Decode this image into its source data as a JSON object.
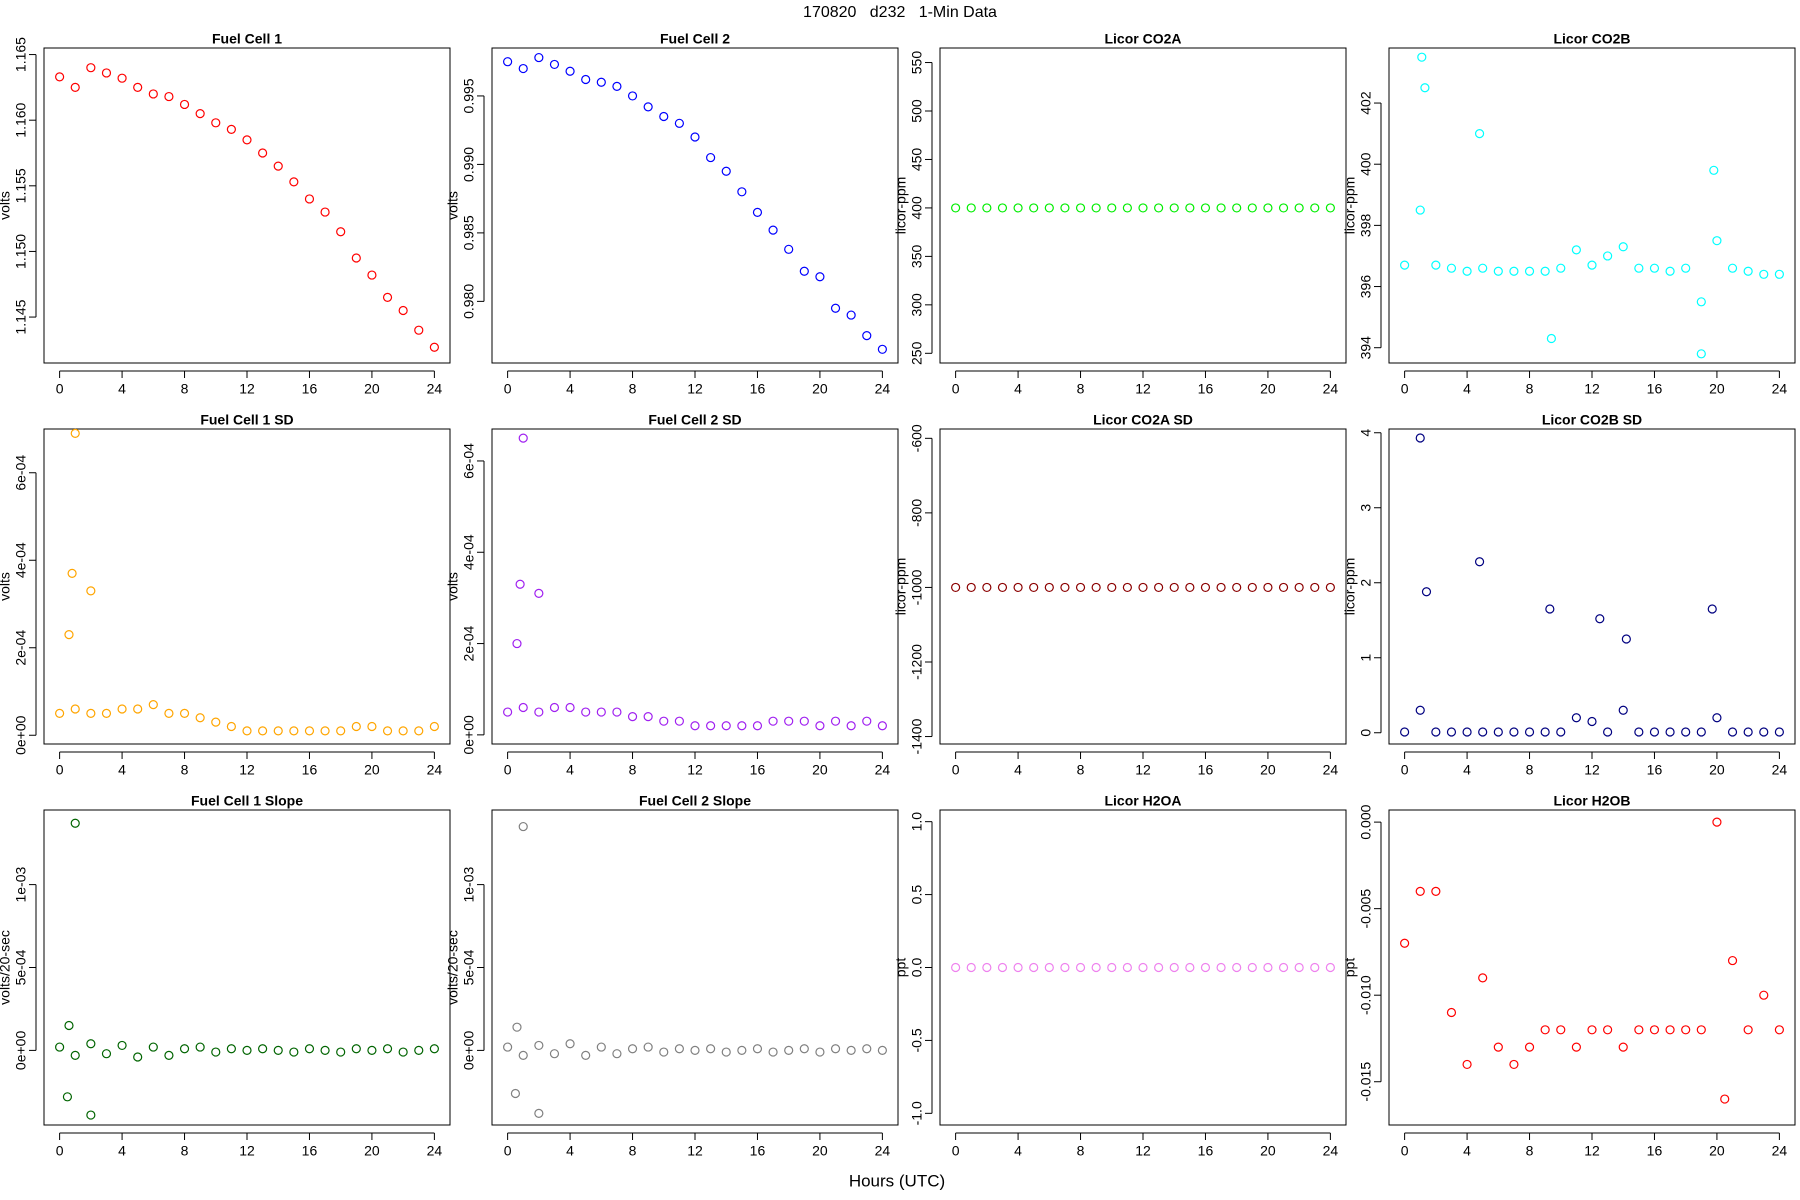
{
  "title": "170820   d232   1-Min Data",
  "xlabel": "Hours (UTC)",
  "chart_data": [
    {
      "type": "scatter",
      "title": "Fuel Cell 1",
      "ylabel": "volts",
      "color": "#ff0000",
      "x": [
        0,
        1,
        2,
        3,
        4,
        5,
        6,
        7,
        8,
        9,
        10,
        11,
        12,
        13,
        14,
        15,
        16,
        17,
        18,
        19,
        20,
        21,
        22,
        23,
        24
      ],
      "values": [
        1.1633,
        1.1625,
        1.164,
        1.1636,
        1.1632,
        1.1625,
        1.162,
        1.1618,
        1.1612,
        1.1605,
        1.1598,
        1.1593,
        1.1585,
        1.1575,
        1.1565,
        1.1553,
        1.154,
        1.153,
        1.1515,
        1.1495,
        1.1482,
        1.1465,
        1.1455,
        1.144,
        1.1427
      ],
      "xlim": [
        -1,
        25
      ],
      "xticks": [
        0,
        4,
        8,
        12,
        16,
        20,
        24
      ],
      "ylim": [
        1.1415,
        1.1655
      ],
      "yticks": [
        1.145,
        {
          "value": 1.15,
          "label": "1.150"
        },
        1.155,
        {
          "value": 1.16,
          "label": "1.160"
        },
        1.165
      ]
    },
    {
      "type": "scatter",
      "title": "Fuel Cell 2",
      "ylabel": "volts",
      "color": "#0000ff",
      "x": [
        0,
        1,
        2,
        3,
        4,
        5,
        6,
        7,
        8,
        9,
        10,
        11,
        12,
        13,
        14,
        15,
        16,
        17,
        18,
        19,
        20,
        21,
        22,
        23,
        24
      ],
      "values": [
        0.9975,
        0.997,
        0.9978,
        0.9973,
        0.9968,
        0.9962,
        0.996,
        0.9957,
        0.995,
        0.9942,
        0.9935,
        0.993,
        0.992,
        0.9905,
        0.9895,
        0.988,
        0.9865,
        0.9852,
        0.9838,
        0.9822,
        0.9818,
        0.9795,
        0.979,
        0.9775,
        0.9765
      ],
      "xlim": [
        -1,
        25
      ],
      "xticks": [
        0,
        4,
        8,
        12,
        16,
        20,
        24
      ],
      "ylim": [
        0.9755,
        0.9985
      ],
      "yticks": [
        {
          "value": 0.98,
          "label": "0.980"
        },
        0.985,
        {
          "value": 0.99,
          "label": "0.990"
        },
        0.995
      ]
    },
    {
      "type": "scatter",
      "title": "Licor CO2A",
      "ylabel": "licor-ppm",
      "color": "#00ee00",
      "x": [
        0,
        1,
        2,
        3,
        4,
        5,
        6,
        7,
        8,
        9,
        10,
        11,
        12,
        13,
        14,
        15,
        16,
        17,
        18,
        19,
        20,
        21,
        22,
        23,
        24
      ],
      "values": [
        400,
        400,
        400,
        400,
        400,
        400,
        400,
        400,
        400,
        400,
        400,
        400,
        400,
        400,
        400,
        400,
        400,
        400,
        400,
        400,
        400,
        400,
        400,
        400,
        400
      ],
      "xlim": [
        -1,
        25
      ],
      "xticks": [
        0,
        4,
        8,
        12,
        16,
        20,
        24
      ],
      "ylim": [
        240,
        565
      ],
      "yticks": [
        250,
        300,
        350,
        400,
        450,
        500,
        550
      ]
    },
    {
      "type": "scatter",
      "title": "Licor CO2B",
      "ylabel": "licor-ppm",
      "color": "#00ffff",
      "x": [
        0,
        1,
        2,
        3,
        4,
        5,
        6,
        7,
        8,
        9,
        10,
        11,
        12,
        13,
        14,
        15,
        16,
        17,
        18,
        19,
        20,
        21,
        22,
        23,
        24,
        1.1,
        1.3,
        4.8,
        19,
        19.8,
        9.4
      ],
      "values": [
        396.7,
        398.5,
        396.7,
        396.6,
        396.5,
        396.6,
        396.5,
        396.5,
        396.5,
        396.5,
        396.6,
        397.2,
        396.7,
        397,
        397.3,
        396.6,
        396.6,
        396.5,
        396.6,
        395.5,
        397.5,
        396.6,
        396.5,
        396.4,
        396.4,
        403.5,
        402.5,
        401,
        393.8,
        399.8,
        394.3
      ],
      "xlim": [
        -1,
        25
      ],
      "xticks": [
        0,
        4,
        8,
        12,
        16,
        20,
        24
      ],
      "ylim": [
        393.5,
        403.8
      ],
      "yticks": [
        394,
        396,
        398,
        400,
        402
      ]
    },
    {
      "type": "scatter",
      "title": "Fuel Cell 1 SD",
      "ylabel": "volts",
      "color": "#ffa500",
      "x": [
        0,
        1,
        2,
        3,
        4,
        5,
        6,
        7,
        8,
        9,
        10,
        11,
        12,
        13,
        14,
        15,
        16,
        17,
        18,
        19,
        20,
        21,
        22,
        23,
        24,
        0.8,
        1,
        2,
        0.6
      ],
      "values": [
        5e-05,
        6e-05,
        5e-05,
        5e-05,
        6e-05,
        6e-05,
        7e-05,
        5e-05,
        5e-05,
        4e-05,
        3e-05,
        2e-05,
        1e-05,
        1e-05,
        1e-05,
        1e-05,
        1e-05,
        1e-05,
        1e-05,
        2e-05,
        2e-05,
        1e-05,
        1e-05,
        1e-05,
        2e-05,
        0.00037,
        0.00069,
        0.00033,
        0.00023
      ],
      "xlim": [
        -1,
        25
      ],
      "xticks": [
        0,
        4,
        8,
        12,
        16,
        20,
        24
      ],
      "ylim": [
        -2e-05,
        0.0007
      ],
      "yticks": [
        {
          "value": 0,
          "label": "0e+00"
        },
        {
          "value": 0.0002,
          "label": "2e-04"
        },
        {
          "value": 0.0004,
          "label": "4e-04"
        },
        {
          "value": 0.0006,
          "label": "6e-04"
        }
      ]
    },
    {
      "type": "scatter",
      "title": "Fuel Cell 2 SD",
      "ylabel": "volts",
      "color": "#a020f0",
      "x": [
        0,
        1,
        2,
        3,
        4,
        5,
        6,
        7,
        8,
        9,
        10,
        11,
        12,
        13,
        14,
        15,
        16,
        17,
        18,
        19,
        20,
        21,
        22,
        23,
        24,
        0.8,
        1,
        2,
        0.6
      ],
      "values": [
        5e-05,
        6e-05,
        5e-05,
        6e-05,
        6e-05,
        5e-05,
        5e-05,
        5e-05,
        4e-05,
        4e-05,
        3e-05,
        3e-05,
        2e-05,
        2e-05,
        2e-05,
        2e-05,
        2e-05,
        3e-05,
        3e-05,
        3e-05,
        2e-05,
        3e-05,
        2e-05,
        3e-05,
        2e-05,
        0.00033,
        0.00065,
        0.00031,
        0.0002
      ],
      "xlim": [
        -1,
        25
      ],
      "xticks": [
        0,
        4,
        8,
        12,
        16,
        20,
        24
      ],
      "ylim": [
        -2e-05,
        0.00067
      ],
      "yticks": [
        {
          "value": 0,
          "label": "0e+00"
        },
        {
          "value": 0.0002,
          "label": "2e-04"
        },
        {
          "value": 0.0004,
          "label": "4e-04"
        },
        {
          "value": 0.0006,
          "label": "6e-04"
        }
      ]
    },
    {
      "type": "scatter",
      "title": "Licor CO2A SD",
      "ylabel": "licor-ppm",
      "color": "#8b0000",
      "x": [
        0,
        1,
        2,
        3,
        4,
        5,
        6,
        7,
        8,
        9,
        10,
        11,
        12,
        13,
        14,
        15,
        16,
        17,
        18,
        19,
        20,
        21,
        22,
        23,
        24
      ],
      "values": [
        -1000,
        -1000,
        -1000,
        -1000,
        -1000,
        -1000,
        -1000,
        -1000,
        -1000,
        -1000,
        -1000,
        -1000,
        -1000,
        -1000,
        -1000,
        -1000,
        -1000,
        -1000,
        -1000,
        -1000,
        -1000,
        -1000,
        -1000,
        -1000,
        -1000
      ],
      "xlim": [
        -1,
        25
      ],
      "xticks": [
        0,
        4,
        8,
        12,
        16,
        20,
        24
      ],
      "ylim": [
        -1420,
        -575
      ],
      "yticks": [
        -1400,
        -1200,
        -1000,
        -800,
        -600
      ]
    },
    {
      "type": "scatter",
      "title": "Licor CO2B SD",
      "ylabel": "licor-ppm",
      "color": "#000080",
      "x": [
        0,
        1,
        2,
        3,
        4,
        5,
        6,
        7,
        8,
        9,
        10,
        11,
        12,
        13,
        14,
        15,
        16,
        17,
        18,
        19,
        20,
        21,
        22,
        23,
        24,
        1,
        1.4,
        4.8,
        9.3,
        12.5,
        19.7,
        14.2
      ],
      "values": [
        0.01,
        0.3,
        0.01,
        0.01,
        0.01,
        0.01,
        0.01,
        0.01,
        0.01,
        0.01,
        0.01,
        0.2,
        0.15,
        0.01,
        0.3,
        0.01,
        0.01,
        0.01,
        0.01,
        0.01,
        0.2,
        0.01,
        0.01,
        0.01,
        0.01,
        3.93,
        1.88,
        2.28,
        1.65,
        1.52,
        1.65,
        1.25
      ],
      "xlim": [
        -1,
        25
      ],
      "xticks": [
        0,
        4,
        8,
        12,
        16,
        20,
        24
      ],
      "ylim": [
        -0.15,
        4.05
      ],
      "yticks": [
        0,
        1,
        2,
        3,
        4
      ]
    },
    {
      "type": "scatter",
      "title": "Fuel Cell 1 Slope",
      "ylabel": "volts/20-sec",
      "color": "#006400",
      "x": [
        0,
        1,
        2,
        3,
        4,
        5,
        6,
        7,
        8,
        9,
        10,
        11,
        12,
        13,
        14,
        15,
        16,
        17,
        18,
        19,
        20,
        21,
        22,
        23,
        24,
        1,
        2,
        0.5,
        0.6
      ],
      "values": [
        2e-05,
        -3e-05,
        4e-05,
        -2e-05,
        3e-05,
        -4e-05,
        2e-05,
        -3e-05,
        1e-05,
        2e-05,
        -1e-05,
        1e-05,
        0,
        1e-05,
        0,
        -1e-05,
        1e-05,
        0,
        -1e-05,
        1e-05,
        0,
        1e-05,
        -1e-05,
        0,
        1e-05,
        0.00137,
        -0.00039,
        -0.00028,
        0.00015
      ],
      "xlim": [
        -1,
        25
      ],
      "xticks": [
        0,
        4,
        8,
        12,
        16,
        20,
        24
      ],
      "ylim": [
        -0.00045,
        0.00145
      ],
      "yticks": [
        {
          "value": 0,
          "label": "0e+00"
        },
        {
          "value": 0.0005,
          "label": "5e-04"
        },
        {
          "value": 0.001,
          "label": "1e-03"
        }
      ]
    },
    {
      "type": "scatter",
      "title": "Fuel Cell 2 Slope",
      "ylabel": "volts/20-sec",
      "color": "#808080",
      "x": [
        0,
        1,
        2,
        3,
        4,
        5,
        6,
        7,
        8,
        9,
        10,
        11,
        12,
        13,
        14,
        15,
        16,
        17,
        18,
        19,
        20,
        21,
        22,
        23,
        24,
        1,
        2,
        0.5,
        0.6
      ],
      "values": [
        2e-05,
        -3e-05,
        3e-05,
        -2e-05,
        4e-05,
        -3e-05,
        2e-05,
        -2e-05,
        1e-05,
        2e-05,
        -1e-05,
        1e-05,
        0,
        1e-05,
        -1e-05,
        0,
        1e-05,
        -1e-05,
        0,
        1e-05,
        -1e-05,
        1e-05,
        0,
        1e-05,
        0,
        0.00135,
        -0.00038,
        -0.00026,
        0.00014
      ],
      "xlim": [
        -1,
        25
      ],
      "xticks": [
        0,
        4,
        8,
        12,
        16,
        20,
        24
      ],
      "ylim": [
        -0.00045,
        0.00145
      ],
      "yticks": [
        {
          "value": 0,
          "label": "0e+00"
        },
        {
          "value": 0.0005,
          "label": "5e-04"
        },
        {
          "value": 0.001,
          "label": "1e-03"
        }
      ]
    },
    {
      "type": "scatter",
      "title": "Licor H2OA",
      "ylabel": "ppt",
      "color": "#ee82ee",
      "x": [
        0,
        1,
        2,
        3,
        4,
        5,
        6,
        7,
        8,
        9,
        10,
        11,
        12,
        13,
        14,
        15,
        16,
        17,
        18,
        19,
        20,
        21,
        22,
        23,
        24
      ],
      "values": [
        0,
        0,
        0,
        0,
        0,
        0,
        0,
        0,
        0,
        0,
        0,
        0,
        0,
        0,
        0,
        0,
        0,
        0,
        0,
        0,
        0,
        0,
        0,
        0,
        0
      ],
      "xlim": [
        -1,
        25
      ],
      "xticks": [
        0,
        4,
        8,
        12,
        16,
        20,
        24
      ],
      "ylim": [
        -1.08,
        1.08
      ],
      "yticks": [
        {
          "value": -1,
          "label": "-1.0"
        },
        -0.5,
        {
          "value": 0,
          "label": "0.0"
        },
        0.5,
        {
          "value": 1,
          "label": "1.0"
        }
      ]
    },
    {
      "type": "scatter",
      "title": "Licor H2OB",
      "ylabel": "ppt",
      "color": "#ff0000",
      "x": [
        0,
        1,
        2,
        3,
        4,
        5,
        6,
        7,
        8,
        9,
        10,
        11,
        12,
        13,
        14,
        15,
        16,
        17,
        18,
        19,
        20,
        20.5,
        21,
        22,
        23,
        24
      ],
      "values": [
        -0.007,
        -0.004,
        -0.004,
        -0.011,
        -0.014,
        -0.009,
        -0.013,
        -0.014,
        -0.013,
        -0.012,
        -0.012,
        -0.013,
        -0.012,
        -0.012,
        -0.013,
        -0.012,
        -0.012,
        -0.012,
        -0.012,
        -0.012,
        0,
        -0.016,
        -0.008,
        -0.012,
        -0.01,
        -0.012
      ],
      "xlim": [
        -1,
        25
      ],
      "xticks": [
        0,
        4,
        8,
        12,
        16,
        20,
        24
      ],
      "ylim": [
        -0.0175,
        0.0007
      ],
      "yticks": [
        {
          "value": -0.015,
          "label": "-0.015"
        },
        {
          "value": -0.01,
          "label": "-0.010"
        },
        -0.005,
        {
          "value": 0,
          "label": "0.000"
        }
      ]
    }
  ]
}
